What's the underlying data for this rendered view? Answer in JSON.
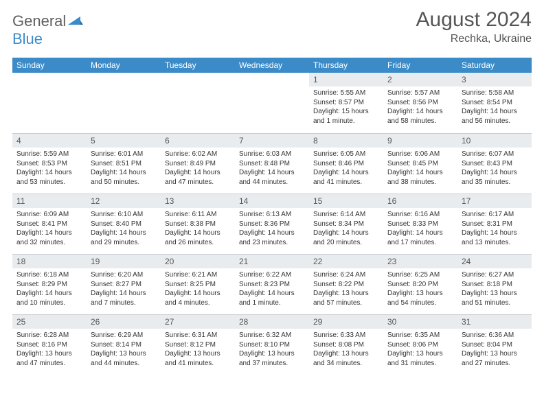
{
  "logo": {
    "text1": "General",
    "text2": "Blue",
    "accent": "#3b8bc9"
  },
  "header": {
    "month": "August 2024",
    "location": "Rechka, Ukraine"
  },
  "colors": {
    "header_bg": "#3b8bc9",
    "header_text": "#ffffff",
    "daynum_bg": "#e9ecee",
    "text": "#333333",
    "border": "#c9ced2"
  },
  "day_headers": [
    "Sunday",
    "Monday",
    "Tuesday",
    "Wednesday",
    "Thursday",
    "Friday",
    "Saturday"
  ],
  "weeks": [
    [
      {
        "n": "",
        "lines": []
      },
      {
        "n": "",
        "lines": []
      },
      {
        "n": "",
        "lines": []
      },
      {
        "n": "",
        "lines": []
      },
      {
        "n": "1",
        "lines": [
          "Sunrise: 5:55 AM",
          "Sunset: 8:57 PM",
          "Daylight: 15 hours and 1 minute."
        ]
      },
      {
        "n": "2",
        "lines": [
          "Sunrise: 5:57 AM",
          "Sunset: 8:56 PM",
          "Daylight: 14 hours and 58 minutes."
        ]
      },
      {
        "n": "3",
        "lines": [
          "Sunrise: 5:58 AM",
          "Sunset: 8:54 PM",
          "Daylight: 14 hours and 56 minutes."
        ]
      }
    ],
    [
      {
        "n": "4",
        "lines": [
          "Sunrise: 5:59 AM",
          "Sunset: 8:53 PM",
          "Daylight: 14 hours and 53 minutes."
        ]
      },
      {
        "n": "5",
        "lines": [
          "Sunrise: 6:01 AM",
          "Sunset: 8:51 PM",
          "Daylight: 14 hours and 50 minutes."
        ]
      },
      {
        "n": "6",
        "lines": [
          "Sunrise: 6:02 AM",
          "Sunset: 8:49 PM",
          "Daylight: 14 hours and 47 minutes."
        ]
      },
      {
        "n": "7",
        "lines": [
          "Sunrise: 6:03 AM",
          "Sunset: 8:48 PM",
          "Daylight: 14 hours and 44 minutes."
        ]
      },
      {
        "n": "8",
        "lines": [
          "Sunrise: 6:05 AM",
          "Sunset: 8:46 PM",
          "Daylight: 14 hours and 41 minutes."
        ]
      },
      {
        "n": "9",
        "lines": [
          "Sunrise: 6:06 AM",
          "Sunset: 8:45 PM",
          "Daylight: 14 hours and 38 minutes."
        ]
      },
      {
        "n": "10",
        "lines": [
          "Sunrise: 6:07 AM",
          "Sunset: 8:43 PM",
          "Daylight: 14 hours and 35 minutes."
        ]
      }
    ],
    [
      {
        "n": "11",
        "lines": [
          "Sunrise: 6:09 AM",
          "Sunset: 8:41 PM",
          "Daylight: 14 hours and 32 minutes."
        ]
      },
      {
        "n": "12",
        "lines": [
          "Sunrise: 6:10 AM",
          "Sunset: 8:40 PM",
          "Daylight: 14 hours and 29 minutes."
        ]
      },
      {
        "n": "13",
        "lines": [
          "Sunrise: 6:11 AM",
          "Sunset: 8:38 PM",
          "Daylight: 14 hours and 26 minutes."
        ]
      },
      {
        "n": "14",
        "lines": [
          "Sunrise: 6:13 AM",
          "Sunset: 8:36 PM",
          "Daylight: 14 hours and 23 minutes."
        ]
      },
      {
        "n": "15",
        "lines": [
          "Sunrise: 6:14 AM",
          "Sunset: 8:34 PM",
          "Daylight: 14 hours and 20 minutes."
        ]
      },
      {
        "n": "16",
        "lines": [
          "Sunrise: 6:16 AM",
          "Sunset: 8:33 PM",
          "Daylight: 14 hours and 17 minutes."
        ]
      },
      {
        "n": "17",
        "lines": [
          "Sunrise: 6:17 AM",
          "Sunset: 8:31 PM",
          "Daylight: 14 hours and 13 minutes."
        ]
      }
    ],
    [
      {
        "n": "18",
        "lines": [
          "Sunrise: 6:18 AM",
          "Sunset: 8:29 PM",
          "Daylight: 14 hours and 10 minutes."
        ]
      },
      {
        "n": "19",
        "lines": [
          "Sunrise: 6:20 AM",
          "Sunset: 8:27 PM",
          "Daylight: 14 hours and 7 minutes."
        ]
      },
      {
        "n": "20",
        "lines": [
          "Sunrise: 6:21 AM",
          "Sunset: 8:25 PM",
          "Daylight: 14 hours and 4 minutes."
        ]
      },
      {
        "n": "21",
        "lines": [
          "Sunrise: 6:22 AM",
          "Sunset: 8:23 PM",
          "Daylight: 14 hours and 1 minute."
        ]
      },
      {
        "n": "22",
        "lines": [
          "Sunrise: 6:24 AM",
          "Sunset: 8:22 PM",
          "Daylight: 13 hours and 57 minutes."
        ]
      },
      {
        "n": "23",
        "lines": [
          "Sunrise: 6:25 AM",
          "Sunset: 8:20 PM",
          "Daylight: 13 hours and 54 minutes."
        ]
      },
      {
        "n": "24",
        "lines": [
          "Sunrise: 6:27 AM",
          "Sunset: 8:18 PM",
          "Daylight: 13 hours and 51 minutes."
        ]
      }
    ],
    [
      {
        "n": "25",
        "lines": [
          "Sunrise: 6:28 AM",
          "Sunset: 8:16 PM",
          "Daylight: 13 hours and 47 minutes."
        ]
      },
      {
        "n": "26",
        "lines": [
          "Sunrise: 6:29 AM",
          "Sunset: 8:14 PM",
          "Daylight: 13 hours and 44 minutes."
        ]
      },
      {
        "n": "27",
        "lines": [
          "Sunrise: 6:31 AM",
          "Sunset: 8:12 PM",
          "Daylight: 13 hours and 41 minutes."
        ]
      },
      {
        "n": "28",
        "lines": [
          "Sunrise: 6:32 AM",
          "Sunset: 8:10 PM",
          "Daylight: 13 hours and 37 minutes."
        ]
      },
      {
        "n": "29",
        "lines": [
          "Sunrise: 6:33 AM",
          "Sunset: 8:08 PM",
          "Daylight: 13 hours and 34 minutes."
        ]
      },
      {
        "n": "30",
        "lines": [
          "Sunrise: 6:35 AM",
          "Sunset: 8:06 PM",
          "Daylight: 13 hours and 31 minutes."
        ]
      },
      {
        "n": "31",
        "lines": [
          "Sunrise: 6:36 AM",
          "Sunset: 8:04 PM",
          "Daylight: 13 hours and 27 minutes."
        ]
      }
    ]
  ]
}
